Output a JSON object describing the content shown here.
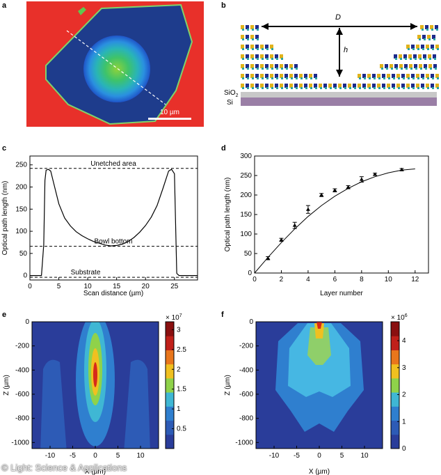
{
  "panel_letters": {
    "a": "a",
    "b": "b",
    "c": "c",
    "d": "d",
    "e": "e",
    "f": "f"
  },
  "panel_a": {
    "scale_label": "10 µm"
  },
  "panel_b": {
    "label_D": "D",
    "label_h": "h",
    "label_sio2": "SiO",
    "label_sio2_sub": "2",
    "label_si": "Si"
  },
  "credit": "© Light: Science & Applications",
  "chart_data": [
    {
      "panel": "c",
      "type": "line",
      "xlabel": "Scan distance (µm)",
      "ylabel": "Optical path length (nm)",
      "xlim": [
        0,
        29
      ],
      "ylim": [
        -10,
        270
      ],
      "xticks": [
        0,
        5,
        10,
        15,
        20,
        25
      ],
      "yticks": [
        0,
        50,
        100,
        150,
        200,
        250
      ],
      "x": [
        0,
        2,
        2.4,
        2.6,
        2.8,
        3.2,
        3.6,
        4,
        5,
        6,
        7,
        8,
        9,
        10,
        11,
        12,
        13,
        14,
        15,
        16,
        17,
        18,
        19,
        20,
        21,
        22,
        23,
        24,
        24.5,
        25,
        25.2,
        25.4,
        25.8,
        29
      ],
      "y": [
        0,
        0,
        70,
        215,
        238,
        240,
        236,
        215,
        162,
        130,
        112,
        99,
        90,
        83,
        77,
        73,
        69,
        67,
        68,
        71,
        77,
        86,
        98,
        113,
        132,
        158,
        196,
        236,
        240,
        230,
        120,
        5,
        0,
        0
      ],
      "reference_lines": [
        {
          "label": "Unetched area",
          "y": 242
        },
        {
          "label": "Bowl bottom",
          "y": 66
        },
        {
          "label": "Substrate",
          "y": -4
        }
      ]
    },
    {
      "panel": "d",
      "type": "scatter",
      "xlabel": "Layer number",
      "ylabel": "Optical path length (nm)",
      "xlim": [
        0,
        13
      ],
      "ylim": [
        0,
        300
      ],
      "xticks": [
        0,
        2,
        4,
        6,
        8,
        10,
        12
      ],
      "yticks": [
        0,
        50,
        100,
        150,
        200,
        250,
        300
      ],
      "x": [
        1,
        2,
        3,
        4,
        5,
        6,
        7,
        8,
        9,
        11
      ],
      "y": [
        38,
        85,
        122,
        163,
        200,
        212,
        220,
        240,
        253,
        265
      ],
      "yerr": [
        4,
        4,
        8,
        10,
        4,
        4,
        4,
        7,
        3,
        3
      ],
      "fit_x": [
        0,
        1,
        2,
        3,
        4,
        5,
        6,
        7,
        8,
        9,
        10,
        11,
        12
      ],
      "fit_y": [
        0,
        40,
        78,
        113,
        145,
        173,
        197,
        217,
        234,
        247,
        257,
        264,
        267
      ]
    },
    {
      "panel": "e",
      "type": "heatmap",
      "xlabel": "X (µm)",
      "ylabel": "Z (µm)",
      "xlim": [
        -14,
        14
      ],
      "ylim": [
        -1050,
        0
      ],
      "xticks": [
        -10,
        -5,
        0,
        5,
        10
      ],
      "yticks": [
        0,
        -200,
        -400,
        -600,
        -800,
        -1000
      ],
      "colorbar": {
        "min": 0,
        "max": 3.2,
        "exponent_label": "× 10",
        "exponent": "7",
        "ticks": [
          0.5,
          1,
          1.5,
          2,
          2.5,
          3
        ],
        "tick_labels": [
          "0.5",
          "1",
          "1.5",
          "2",
          "2.5",
          "3"
        ]
      }
    },
    {
      "panel": "f",
      "type": "heatmap",
      "xlabel": "X (µm)",
      "ylabel": "Z (µm)",
      "xlim": [
        -14,
        14
      ],
      "ylim": [
        -1050,
        0
      ],
      "xticks": [
        -10,
        -5,
        0,
        5,
        10
      ],
      "yticks": [
        0,
        -200,
        -400,
        -600,
        -800,
        -1000
      ],
      "colorbar": {
        "min": 0,
        "max": 4.7,
        "exponent_label": "× 10",
        "exponent": "6",
        "ticks": [
          0,
          1,
          2,
          3,
          4
        ],
        "tick_labels": [
          "0",
          "1",
          "2",
          "3",
          "4"
        ]
      }
    }
  ]
}
